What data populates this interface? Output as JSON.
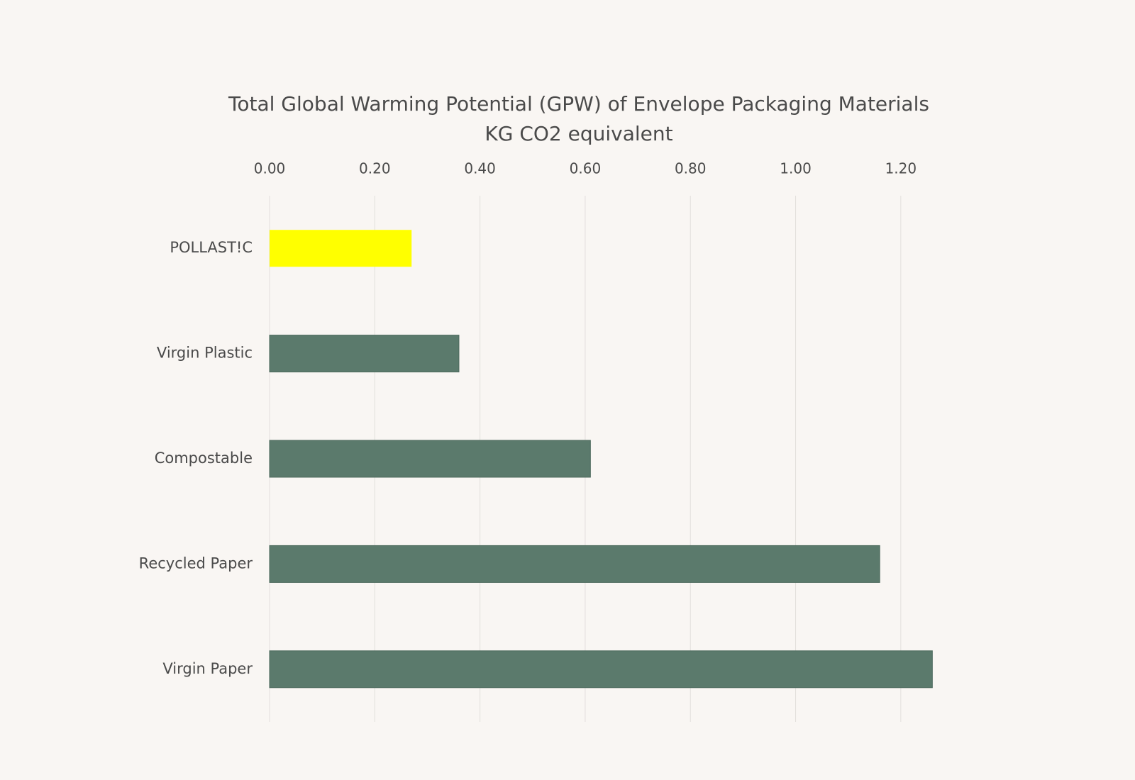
{
  "chart_data": {
    "type": "barh",
    "title": "Total Global Warming Potential (GPW) of Envelope Packaging Materials",
    "subtitle": "KG CO2 equivalent",
    "categories": [
      "POLLAST!C",
      "Virgin Plastic",
      "Compostable",
      "Recycled Paper",
      "Virgin Paper"
    ],
    "values": [
      0.27,
      0.36,
      0.61,
      1.16,
      1.26
    ],
    "colors": [
      "#ffff00",
      "#5b7a6c",
      "#5b7a6c",
      "#5b7a6c",
      "#5b7a6c"
    ],
    "xlim": [
      0,
      1.3
    ],
    "xticks": [
      {
        "value": 0,
        "label": "0.00"
      },
      {
        "value": 0.2,
        "label": "0.20"
      },
      {
        "value": 0.4,
        "label": "0.40"
      },
      {
        "value": 0.6,
        "label": "0.60"
      },
      {
        "value": 0.8,
        "label": "0.80"
      },
      {
        "value": 1,
        "label": "1.00"
      },
      {
        "value": 1.2,
        "label": "1.20"
      }
    ],
    "grid": true
  }
}
